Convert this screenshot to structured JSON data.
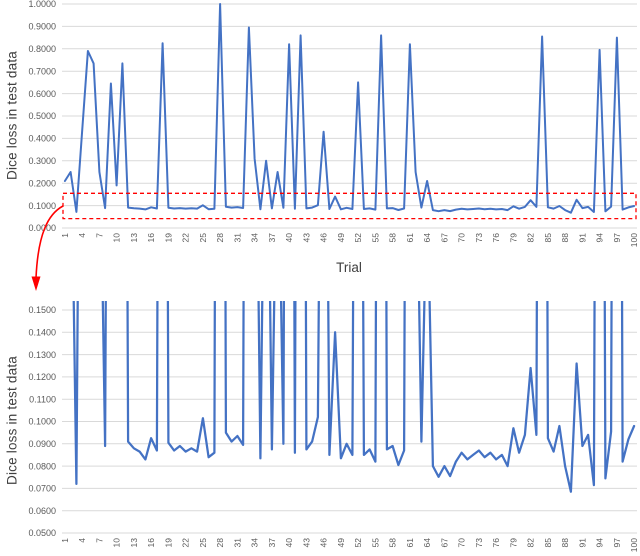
{
  "styles": {
    "background": "#FFFFFF",
    "series_color": "#4472C4",
    "grid_color": "#D9D9D9",
    "tick_label_color": "#595959",
    "axis_title_color": "#404040",
    "annotation_color": "#FF0000"
  },
  "chart_data": [
    {
      "type": "line",
      "panel": "top",
      "title": "",
      "xlabel": "Trial",
      "ylabel": "Dice loss in test data",
      "ylim": [
        0.0,
        1.0
      ],
      "x_range": [
        1,
        100
      ],
      "grid": true,
      "legend": "none",
      "y_tick_labels": [
        "0.0000",
        "0.1000",
        "0.2000",
        "0.3000",
        "0.4000",
        "0.5000",
        "0.6000",
        "0.7000",
        "0.8000",
        "0.9000",
        "1.0000"
      ],
      "x_tick_labels": [
        1,
        4,
        7,
        10,
        13,
        16,
        19,
        22,
        25,
        28,
        31,
        34,
        37,
        40,
        43,
        46,
        49,
        52,
        55,
        58,
        61,
        64,
        67,
        70,
        73,
        76,
        79,
        82,
        85,
        88,
        91,
        94,
        97,
        100
      ],
      "series": [
        {
          "name": "Dice loss",
          "values": [
            0.21,
            0.25,
            0.072,
            0.43,
            0.79,
            0.735,
            0.25,
            0.089,
            0.645,
            0.19,
            0.735,
            0.091,
            0.088,
            0.0865,
            0.083,
            0.0925,
            0.087,
            0.825,
            0.0905,
            0.087,
            0.089,
            0.0865,
            0.088,
            0.0865,
            0.1015,
            0.084,
            0.086,
            1.0,
            0.095,
            0.091,
            0.0935,
            0.0895,
            0.895,
            0.31,
            0.0835,
            0.3,
            0.0875,
            0.25,
            0.09,
            0.82,
            0.086,
            0.86,
            0.0875,
            0.091,
            0.102,
            0.43,
            0.085,
            0.14,
            0.0835,
            0.09,
            0.085,
            0.65,
            0.085,
            0.0875,
            0.082,
            0.86,
            0.0875,
            0.089,
            0.0805,
            0.087,
            0.82,
            0.25,
            0.091,
            0.21,
            0.08,
            0.0752,
            0.08,
            0.0755,
            0.082,
            0.086,
            0.083,
            0.085,
            0.087,
            0.084,
            0.086,
            0.083,
            0.085,
            0.08,
            0.097,
            0.086,
            0.094,
            0.124,
            0.094,
            0.855,
            0.0925,
            0.0865,
            0.098,
            0.08,
            0.0685,
            0.126,
            0.089,
            0.094,
            0.0715,
            0.795,
            0.0745,
            0.0955,
            0.85,
            0.082,
            0.092,
            0.098
          ]
        }
      ],
      "annotations": [
        {
          "type": "dashed-rect",
          "y_from": 0.042,
          "y_to": 0.155,
          "color": "#FF0000",
          "meaning": "highlighted low-loss band that is zoomed in the bottom chart"
        },
        {
          "type": "curved-arrow",
          "color": "#FF0000",
          "meaning": "points from the highlighted band down to the zoomed bottom chart"
        }
      ]
    },
    {
      "type": "line",
      "panel": "bottom",
      "title": "",
      "xlabel": "",
      "ylabel": "Dice loss in test data",
      "ylim": [
        0.05,
        0.15
      ],
      "x_range": [
        1,
        100
      ],
      "grid": true,
      "legend": "none",
      "clip_above": 0.15,
      "note": "zoomed view of the red dashed region of the top chart; same series, values above 0.15 run off the top",
      "y_tick_labels": [
        "0.0500",
        "0.0600",
        "0.0700",
        "0.0800",
        "0.0900",
        "0.1000",
        "0.1100",
        "0.1200",
        "0.1300",
        "0.1400",
        "0.1500"
      ],
      "x_tick_labels": [
        1,
        4,
        7,
        10,
        13,
        16,
        19,
        22,
        25,
        28,
        31,
        34,
        37,
        40,
        43,
        46,
        49,
        52,
        55,
        58,
        61,
        64,
        67,
        70,
        73,
        76,
        79,
        82,
        85,
        88,
        91,
        94,
        97,
        100
      ],
      "series": [
        {
          "name": "Dice loss",
          "values": [
            0.21,
            0.25,
            0.072,
            0.43,
            0.79,
            0.735,
            0.25,
            0.089,
            0.645,
            0.19,
            0.735,
            0.091,
            0.088,
            0.0865,
            0.083,
            0.0925,
            0.087,
            0.825,
            0.0905,
            0.087,
            0.089,
            0.0865,
            0.088,
            0.0865,
            0.1015,
            0.084,
            0.086,
            1.0,
            0.095,
            0.091,
            0.0935,
            0.0895,
            0.895,
            0.31,
            0.0835,
            0.3,
            0.0875,
            0.25,
            0.09,
            0.82,
            0.086,
            0.86,
            0.0875,
            0.091,
            0.102,
            0.43,
            0.085,
            0.14,
            0.0835,
            0.09,
            0.085,
            0.65,
            0.085,
            0.0875,
            0.082,
            0.86,
            0.0875,
            0.089,
            0.0805,
            0.087,
            0.82,
            0.25,
            0.091,
            0.21,
            0.08,
            0.0752,
            0.08,
            0.0755,
            0.082,
            0.086,
            0.083,
            0.085,
            0.087,
            0.084,
            0.086,
            0.083,
            0.085,
            0.08,
            0.097,
            0.086,
            0.094,
            0.124,
            0.094,
            0.855,
            0.0925,
            0.0865,
            0.098,
            0.08,
            0.0685,
            0.126,
            0.089,
            0.094,
            0.0715,
            0.795,
            0.0745,
            0.0955,
            0.85,
            0.082,
            0.092,
            0.098
          ]
        }
      ]
    }
  ]
}
